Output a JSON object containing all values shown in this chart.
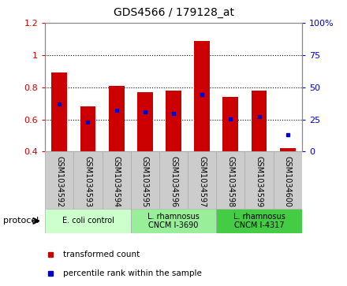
{
  "title": "GDS4566 / 179128_at",
  "samples": [
    "GSM1034592",
    "GSM1034593",
    "GSM1034594",
    "GSM1034595",
    "GSM1034596",
    "GSM1034597",
    "GSM1034598",
    "GSM1034599",
    "GSM1034600"
  ],
  "transformed_count": [
    0.89,
    0.68,
    0.81,
    0.77,
    0.78,
    1.09,
    0.74,
    0.78,
    0.42
  ],
  "percentile_rank": [
    0.695,
    0.585,
    0.655,
    0.645,
    0.635,
    0.755,
    0.605,
    0.615,
    0.505
  ],
  "bar_bottom": 0.4,
  "ylim": [
    0.4,
    1.2
  ],
  "y2lim": [
    0,
    100
  ],
  "yticks_left": [
    0.4,
    0.6,
    0.8,
    1.0,
    1.2
  ],
  "yticks_right": [
    0,
    25,
    50,
    75,
    100
  ],
  "bar_color": "#cc0000",
  "dot_color": "#0000cc",
  "bar_width": 0.55,
  "proto_colors": [
    "#ccffcc",
    "#99ee99",
    "#44cc44"
  ],
  "proto_labels": [
    "E. coli control",
    "L. rhamnosus\nCNCM I-3690",
    "L. rhamnosus\nCNCM I-4317"
  ],
  "proto_ranges": [
    [
      0,
      2
    ],
    [
      3,
      5
    ],
    [
      6,
      8
    ]
  ],
  "legend_labels": [
    "transformed count",
    "percentile rank within the sample"
  ],
  "legend_colors": [
    "#cc0000",
    "#0000cc"
  ],
  "tick_color_left": "#cc0000",
  "tick_color_right": "#0000cc",
  "grid_ticks": [
    0.6,
    0.8,
    1.0
  ],
  "sample_bg": "#cccccc",
  "sample_edge": "#aaaaaa"
}
